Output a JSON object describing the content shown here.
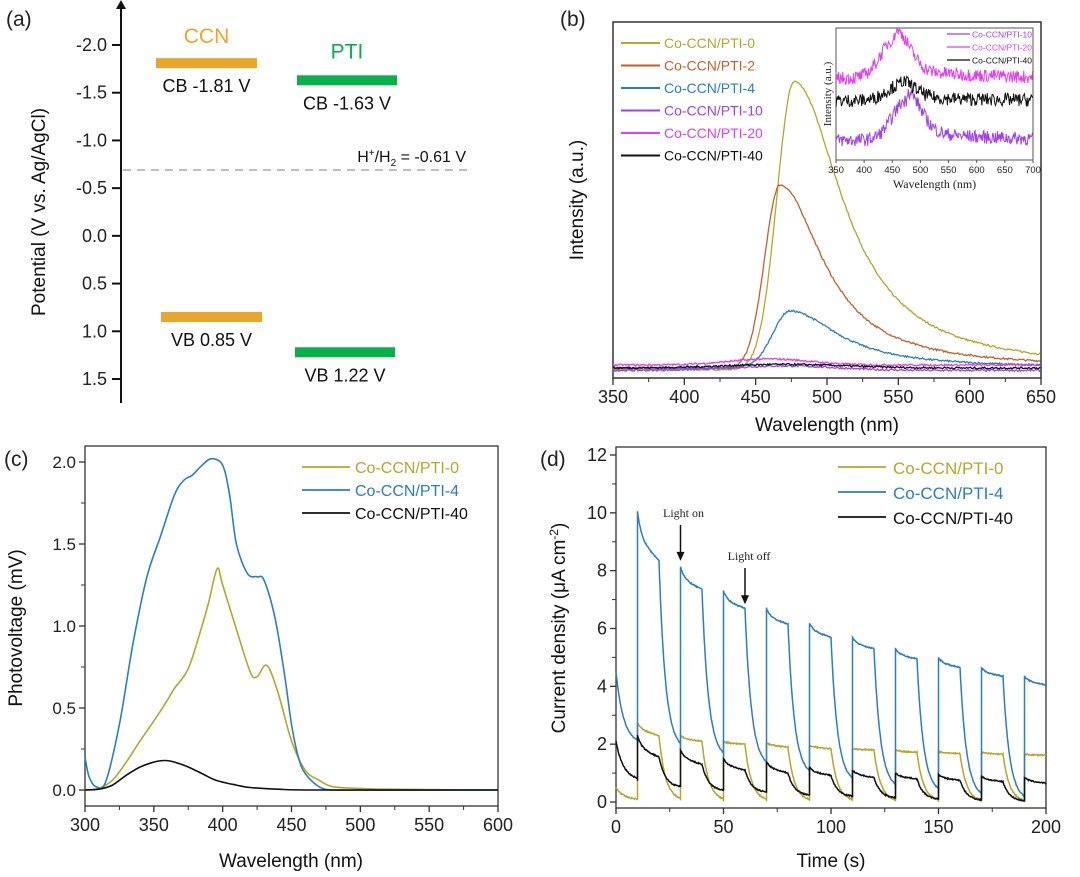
{
  "chart_data": [
    {
      "panel": "(a)",
      "type": "diagram-band-levels",
      "ylabel": "Potential (V vs. Ag/AgCl)",
      "ylim": [
        -2.3,
        1.7
      ],
      "yticks": [
        -2.0,
        -1.5,
        -1.0,
        -0.5,
        0.0,
        0.5,
        1.0,
        1.5
      ],
      "ytick_labels": [
        "-2.0",
        "-1.5",
        "-1.0",
        "-0.5",
        "0.0",
        "0.5",
        "1.0",
        "1.5"
      ],
      "inverted": true,
      "materials": [
        {
          "name": "CCN",
          "color": "#e8a62a",
          "cb": -1.81,
          "vb": 0.85,
          "cb_label": "CB -1.81 V",
          "vb_label": "VB 0.85 V"
        },
        {
          "name": "PTI",
          "color": "#08b04c",
          "cb": -1.63,
          "vb": 1.22,
          "cb_label": "CB -1.63 V",
          "vb_label": "VB 1.22 V"
        }
      ],
      "reference_line": {
        "value": -0.61,
        "label_main": "H",
        "label_sup": "+",
        "label_mid": "/H",
        "label_sub": "2",
        "label_end": " = -0.61 V",
        "color": "#aaaaaa"
      }
    },
    {
      "panel": "(b)",
      "type": "line",
      "xlabel": "Wavelength (nm)",
      "ylabel": "Intensity (a.u.)",
      "xlim": [
        350,
        650
      ],
      "xticks": [
        350,
        400,
        450,
        500,
        550,
        600,
        650
      ],
      "ylim": [
        0,
        1.0
      ],
      "legend_position": "top-left",
      "series": [
        {
          "name": "Co-CCN/PTI-0",
          "color": "#b5a72a",
          "peak_x": 477,
          "peak_y": 0.96
        },
        {
          "name": "Co-CCN/PTI-2",
          "color": "#c2622a",
          "peak_x": 467,
          "peak_y": 0.61
        },
        {
          "name": "Co-CCN/PTI-4",
          "color": "#2a7fbf",
          "peak_x": 474,
          "peak_y": 0.19
        },
        {
          "name": "Co-CCN/PTI-10",
          "color": "#a040f0",
          "peak_x": 470,
          "peak_y": 0.03
        },
        {
          "name": "Co-CCN/PTI-20",
          "color": "#e040f0",
          "peak_x": 460,
          "peak_y": 0.05
        },
        {
          "name": "Co-CCN/PTI-40",
          "color": "#111111",
          "peak_x": 470,
          "peak_y": 0.04
        }
      ],
      "inset": {
        "xlabel": "Wavelength (nm)",
        "ylabel": "Intensity (a.u.)",
        "xlim": [
          350,
          700
        ],
        "xticks": [
          350,
          400,
          450,
          500,
          550,
          600,
          650,
          700
        ],
        "legend_position": "top-right",
        "series": [
          {
            "name": "Co-CCN/PTI-10",
            "color": "#a040f0",
            "baseline": 0.15,
            "peak_x": 475,
            "peak_height": 0.3
          },
          {
            "name": "Co-CCN/PTI-20",
            "color": "#e040f0",
            "baseline": 0.62,
            "peak_x": 455,
            "peak_height": 0.3
          },
          {
            "name": "Co-CCN/PTI-40",
            "color": "#111111",
            "baseline": 0.45,
            "peak_x": 465,
            "peak_height": 0.12
          }
        ]
      }
    },
    {
      "panel": "(c)",
      "type": "line",
      "xlabel": "Wavelength (nm)",
      "ylabel": "Photovoltage (mV)",
      "xlim": [
        300,
        600
      ],
      "xticks": [
        300,
        350,
        400,
        450,
        500,
        550,
        600
      ],
      "ylim": [
        -0.1,
        2.1
      ],
      "yticks": [
        0.0,
        0.5,
        1.0,
        1.5,
        2.0
      ],
      "ytick_labels": [
        "0.0",
        "0.5",
        "1.0",
        "1.5",
        "2.0"
      ],
      "legend_position": "top-right",
      "series": [
        {
          "name": "Co-CCN/PTI-0",
          "color": "#b5a72a",
          "x": [
            300,
            310,
            320,
            330,
            340,
            350,
            360,
            365,
            375,
            385,
            390,
            396,
            400,
            410,
            420,
            425,
            432,
            440,
            450,
            460,
            470,
            480,
            500,
            520,
            600
          ],
          "y": [
            0.0,
            0.01,
            0.06,
            0.17,
            0.3,
            0.42,
            0.55,
            0.62,
            0.74,
            1.0,
            1.15,
            1.35,
            1.25,
            0.98,
            0.72,
            0.69,
            0.76,
            0.6,
            0.3,
            0.12,
            0.06,
            0.02,
            0.01,
            0.005,
            0.0
          ]
        },
        {
          "name": "Co-CCN/PTI-4",
          "color": "#2a7fbf",
          "x": [
            300,
            303,
            308,
            315,
            325,
            335,
            345,
            355,
            365,
            372,
            378,
            385,
            392,
            400,
            405,
            410,
            418,
            425,
            430,
            438,
            445,
            450,
            455,
            460,
            470,
            480,
            500,
            600
          ],
          "y": [
            0.2,
            0.08,
            0.02,
            0.05,
            0.4,
            0.9,
            1.3,
            1.55,
            1.8,
            1.89,
            1.92,
            1.98,
            2.02,
            1.98,
            1.8,
            1.5,
            1.32,
            1.3,
            1.28,
            1.05,
            0.7,
            0.4,
            0.2,
            0.1,
            0.02,
            0.0,
            0.0,
            0.0
          ]
        },
        {
          "name": "Co-CCN/PTI-40",
          "color": "#111111",
          "x": [
            300,
            310,
            320,
            330,
            340,
            350,
            358,
            365,
            375,
            385,
            395,
            410,
            420,
            440,
            470,
            600
          ],
          "y": [
            0.0,
            0.005,
            0.03,
            0.09,
            0.14,
            0.17,
            0.18,
            0.17,
            0.14,
            0.1,
            0.06,
            0.03,
            0.015,
            0.005,
            0.0,
            0.0
          ]
        }
      ]
    },
    {
      "panel": "(d)",
      "type": "line",
      "xlabel": "Time (s)",
      "ylabel_main": "Current density (μA cm",
      "ylabel_sup": "-2",
      "ylabel_end": ")",
      "xlim": [
        0,
        200
      ],
      "xticks": [
        0,
        50,
        100,
        150,
        200
      ],
      "ylim": [
        -0.3,
        12.3
      ],
      "yticks": [
        0,
        2,
        4,
        6,
        8,
        10,
        12
      ],
      "legend_position": "top-right",
      "light_period_s": 20,
      "light_on_duration_s": 10,
      "first_light_on_s": 10,
      "annotations": [
        {
          "text": "Light on",
          "x": 30,
          "y": 8.2
        },
        {
          "text": "Light off",
          "x": 60,
          "y": 6.7
        }
      ],
      "series": [
        {
          "name": "Co-CCN/PTI-0",
          "color": "#b5a72a",
          "on_peaks": [
            2.75,
            2.3,
            2.1,
            2.05,
            1.95,
            1.85,
            1.8,
            1.75,
            1.72,
            1.65
          ],
          "on_ends": [
            2.3,
            2.1,
            2.0,
            1.9,
            1.85,
            1.8,
            1.72,
            1.68,
            1.65,
            1.62
          ],
          "off_start": 0.5,
          "off_min": [
            0.08,
            0.05,
            0.04,
            0.03,
            0.02,
            0.02,
            0.01,
            0.01,
            0.0,
            0.0
          ]
        },
        {
          "name": "Co-CCN/PTI-4",
          "color": "#2a7fbf",
          "on_peaks": [
            10.05,
            8.15,
            7.3,
            6.7,
            6.2,
            5.7,
            5.3,
            5.0,
            4.65,
            4.35
          ],
          "on_ends": [
            8.35,
            7.35,
            6.7,
            6.15,
            5.7,
            5.3,
            4.95,
            4.65,
            4.35,
            4.05
          ],
          "off_start": 4.5,
          "off_min": [
            2.0,
            1.8,
            1.5,
            1.2,
            0.9,
            0.65,
            0.45,
            0.3,
            0.15,
            0.05
          ]
        },
        {
          "name": "Co-CCN/PTI-40",
          "color": "#111111",
          "on_peaks": [
            2.3,
            1.8,
            1.5,
            1.4,
            1.2,
            1.1,
            1.0,
            0.95,
            0.9,
            0.85
          ],
          "on_ends": [
            1.55,
            1.3,
            1.1,
            1.0,
            0.92,
            0.85,
            0.8,
            0.75,
            0.7,
            0.65
          ],
          "off_start": 2.1,
          "off_min": [
            0.75,
            0.5,
            0.38,
            0.32,
            0.22,
            0.18,
            0.12,
            0.08,
            0.05,
            0.02
          ]
        }
      ]
    }
  ]
}
